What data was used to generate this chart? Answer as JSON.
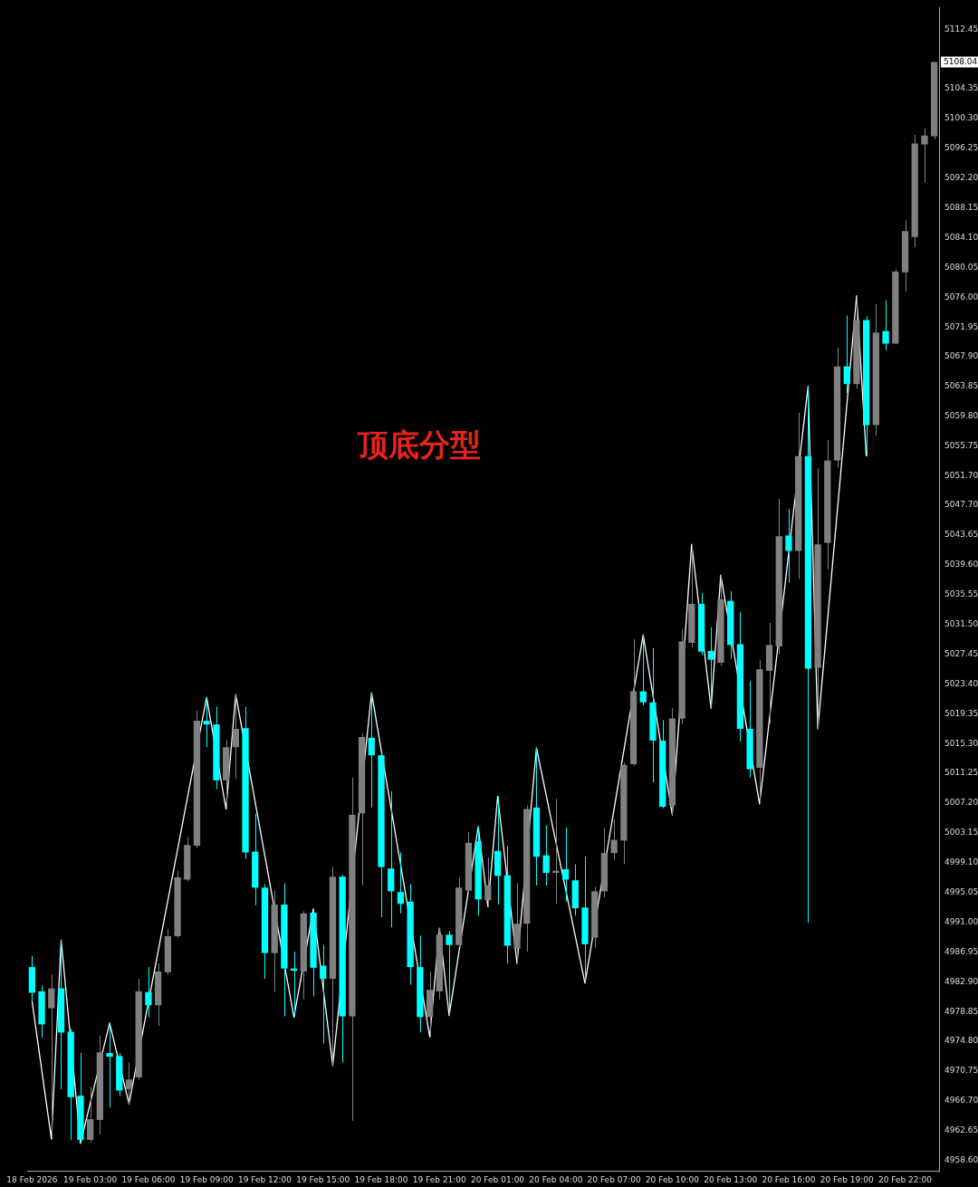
{
  "chart_data": {
    "type": "candlestick",
    "categories": [
      "18 Feb 2026",
      null,
      null,
      null,
      null,
      null,
      "19 Feb 03:00",
      null,
      null,
      null,
      null,
      null,
      "19 Feb 06:00",
      null,
      null,
      null,
      null,
      null,
      "19 Feb 09:00",
      null,
      null,
      null,
      null,
      null,
      "19 Feb 12:00",
      null,
      null,
      null,
      null,
      null,
      "19 Feb 15:00",
      null,
      null,
      null,
      null,
      null,
      "19 Feb 18:00",
      null,
      null,
      null,
      null,
      null,
      "19 Feb 21:00",
      null,
      null,
      null,
      null,
      null,
      "20 Feb 01:00",
      null,
      null,
      null,
      null,
      null,
      "20 Feb 04:00",
      null,
      null,
      null,
      null,
      null,
      "20 Feb 07:00",
      null,
      null,
      null,
      null,
      null,
      "20 Feb 10:00",
      null,
      null,
      null,
      null,
      null,
      "20 Feb 13:00",
      null,
      null,
      null,
      null,
      null,
      "20 Feb 16:00",
      null,
      null,
      null,
      null,
      null,
      "20 Feb 19:00",
      null,
      null,
      null,
      null,
      null,
      "20 Feb 22:00",
      null,
      null,
      null
    ],
    "ohlc": [
      [
        4984.9,
        4986.4,
        4980.3,
        4981.4
      ],
      [
        4981.6,
        4982.4,
        4975.3,
        4977.1
      ],
      [
        4979.3,
        4983.9,
        4961.5,
        4982.0
      ],
      [
        4982.0,
        4988.6,
        4968.3,
        4976.0
      ],
      [
        4976.1,
        4976.5,
        4961.4,
        4967.2
      ],
      [
        4967.4,
        4973.2,
        4960.9,
        4961.4
      ],
      [
        4961.4,
        4968.6,
        4961.0,
        4964.2
      ],
      [
        4964.1,
        4975.6,
        4962.1,
        4973.3
      ],
      [
        4973.2,
        4977.3,
        4965.8,
        4972.7
      ],
      [
        4972.8,
        4973.2,
        4967.4,
        4968.1
      ],
      [
        4968.3,
        4971.9,
        4966.3,
        4969.6
      ],
      [
        4969.9,
        4983.3,
        4969.6,
        4981.6
      ],
      [
        4981.5,
        4984.9,
        4978.1,
        4979.7
      ],
      [
        4979.7,
        4985.4,
        4976.9,
        4984.3
      ],
      [
        4984.2,
        4990.1,
        4983.9,
        4989.1
      ],
      [
        4989.1,
        4998.0,
        4988.9,
        4997.1
      ],
      [
        4996.8,
        5002.6,
        4996.6,
        5001.5
      ],
      [
        5001.4,
        5019.8,
        5001.1,
        5018.4
      ],
      [
        5018.4,
        5021.6,
        5014.8,
        5017.9
      ],
      [
        5017.9,
        5020.3,
        5009.1,
        5010.3
      ],
      [
        5010.3,
        5015.8,
        5006.4,
        5014.8
      ],
      [
        5014.8,
        5022.0,
        5010.5,
        5017.3
      ],
      [
        5017.4,
        5020.3,
        4999.6,
        5000.5
      ],
      [
        5000.6,
        5005.8,
        4993.3,
        4995.7
      ],
      [
        4995.7,
        4996.2,
        4983.3,
        4986.8
      ],
      [
        4986.8,
        4995.3,
        4981.5,
        4993.4
      ],
      [
        4993.4,
        4996.3,
        4978.2,
        4984.7
      ],
      [
        4984.7,
        4987.0,
        4978.1,
        4984.4
      ],
      [
        4984.3,
        4992.5,
        4980.5,
        4992.2
      ],
      [
        4992.3,
        4992.8,
        4980.9,
        4984.8
      ],
      [
        4985.1,
        4987.9,
        4974.5,
        4983.3
      ],
      [
        4983.3,
        4998.5,
        4971.5,
        4997.2
      ],
      [
        4997.2,
        4997.4,
        4971.9,
        4978.2
      ],
      [
        4978.2,
        5010.7,
        4964.0,
        5005.6
      ],
      [
        5005.8,
        5016.7,
        4996.0,
        5016.2
      ],
      [
        5016.1,
        5022.2,
        5006.6,
        5013.7
      ],
      [
        5013.7,
        5014.0,
        4991.7,
        4998.5
      ],
      [
        4998.3,
        5008.8,
        4990.3,
        4995.2
      ],
      [
        4995.1,
        5000.5,
        4992.2,
        4993.5
      ],
      [
        4993.8,
        4996.2,
        4982.5,
        4984.9
      ],
      [
        4984.9,
        4989.2,
        4976.0,
        4978.1
      ],
      [
        4978.1,
        4984.3,
        4975.4,
        4981.8
      ],
      [
        4981.6,
        4990.2,
        4980.5,
        4989.3
      ],
      [
        4989.3,
        4989.8,
        4978.3,
        4987.9
      ],
      [
        4987.9,
        4997.1,
        4987.6,
        4995.7
      ],
      [
        4995.3,
        5003.3,
        4995.1,
        5001.8
      ],
      [
        5002.0,
        5004.0,
        4991.9,
        4994.1
      ],
      [
        4994.0,
        4999.8,
        4993.1,
        4996.0
      ],
      [
        5000.7,
        5008.1,
        4993.4,
        4997.3
      ],
      [
        4997.4,
        5001.4,
        4985.4,
        4987.8
      ],
      [
        4987.4,
        4996.3,
        4985.4,
        4990.8
      ],
      [
        4990.8,
        5006.9,
        4987.0,
        5006.4
      ],
      [
        5006.6,
        5014.7,
        4996.0,
        4999.9
      ],
      [
        5000.1,
        5004.2,
        4996.0,
        4997.7
      ],
      [
        4997.7,
        5007.8,
        4993.5,
        4998.0
      ],
      [
        4998.2,
        5003.9,
        4993.8,
        4996.8
      ],
      [
        4996.7,
        4998.9,
        4991.9,
        4992.9
      ],
      [
        4993.0,
        4999.9,
        4982.7,
        4988.0
      ],
      [
        4988.9,
        4995.8,
        4987.6,
        4995.2
      ],
      [
        4995.2,
        5003.8,
        4994.4,
        5000.4
      ],
      [
        5000.4,
        5005.0,
        4999.5,
        5002.2
      ],
      [
        5002.1,
        5012.7,
        4998.9,
        5012.4
      ],
      [
        5012.5,
        5029.5,
        5012.3,
        5022.4
      ],
      [
        5022.4,
        5030.1,
        5020.5,
        5020.9
      ],
      [
        5020.9,
        5028.3,
        5010.0,
        5015.7
      ],
      [
        5015.7,
        5018.5,
        5006.5,
        5006.7
      ],
      [
        5006.9,
        5020.1,
        5005.6,
        5018.7
      ],
      [
        5018.7,
        5030.8,
        5018.0,
        5029.2
      ],
      [
        5029.0,
        5042.4,
        5028.4,
        5034.3
      ],
      [
        5034.3,
        5035.8,
        5027.4,
        5027.8
      ],
      [
        5027.9,
        5031.1,
        5020.1,
        5026.7
      ],
      [
        5026.3,
        5038.2,
        5025.9,
        5034.9
      ],
      [
        5034.7,
        5036.0,
        5026.8,
        5028.7
      ],
      [
        5028.8,
        5033.2,
        5015.6,
        5017.3
      ],
      [
        5017.3,
        5023.8,
        5010.7,
        5011.8
      ],
      [
        5012.0,
        5026.6,
        5007.1,
        5025.4
      ],
      [
        5025.2,
        5031.7,
        5018.0,
        5028.7
      ],
      [
        5028.5,
        5048.6,
        5027.4,
        5043.5
      ],
      [
        5043.6,
        5047.2,
        5037.2,
        5041.5
      ],
      [
        5041.5,
        5060.3,
        5037.7,
        5054.4
      ],
      [
        5054.4,
        5063.9,
        4990.9,
        5025.5
      ],
      [
        5025.6,
        5052.7,
        5017.3,
        5042.4
      ],
      [
        5042.6,
        5056.6,
        5039.0,
        5053.8
      ],
      [
        5053.8,
        5069.2,
        5052.9,
        5066.6
      ],
      [
        5066.6,
        5073.5,
        5063.0,
        5064.2
      ],
      [
        5064.2,
        5076.2,
        5063.6,
        5072.9
      ],
      [
        5072.9,
        5073.4,
        5054.4,
        5058.6
      ],
      [
        5058.6,
        5075.1,
        5057.2,
        5071.2
      ],
      [
        5071.4,
        5075.6,
        5068.8,
        5069.7
      ],
      [
        5069.7,
        5079.8,
        5069.6,
        5079.5
      ],
      [
        5079.4,
        5086.5,
        5076.8,
        5085.0
      ],
      [
        5084.2,
        5098.1,
        5082.8,
        5096.9
      ],
      [
        5096.8,
        5099.0,
        5091.6,
        5098.0
      ],
      [
        5097.9,
        5108.0,
        5097.5,
        5108.0
      ]
    ],
    "colors": [
      "#00ffff",
      "#00ffff",
      "#808080",
      "#00ffff",
      "#00ffff",
      "#00ffff",
      "#808080",
      "#808080",
      "#00ffff",
      "#00ffff",
      "#808080",
      "#808080",
      "#00ffff",
      "#808080",
      "#808080",
      "#808080",
      "#808080",
      "#808080",
      "#00ffff",
      "#00ffff",
      "#808080",
      "#808080",
      "#00ffff",
      "#00ffff",
      "#00ffff",
      "#808080",
      "#00ffff",
      "#00ffff",
      "#808080",
      "#00ffff",
      "#00ffff",
      "#808080",
      "#00ffff",
      "#808080",
      "#808080",
      "#00ffff",
      "#00ffff",
      "#00ffff",
      "#00ffff",
      "#00ffff",
      "#00ffff",
      "#808080",
      "#808080",
      "#00ffff",
      "#808080",
      "#808080",
      "#00ffff",
      "#808080",
      "#00ffff",
      "#00ffff",
      "#808080",
      "#808080",
      "#00ffff",
      "#00ffff",
      "#808080",
      "#00ffff",
      "#00ffff",
      "#00ffff",
      "#808080",
      "#808080",
      "#808080",
      "#808080",
      "#808080",
      "#00ffff",
      "#00ffff",
      "#00ffff",
      "#808080",
      "#808080",
      "#808080",
      "#00ffff",
      "#00ffff",
      "#808080",
      "#00ffff",
      "#00ffff",
      "#00ffff",
      "#808080",
      "#808080",
      "#808080",
      "#00ffff",
      "#808080",
      "#00ffff",
      "#808080",
      "#808080",
      "#808080",
      "#00ffff",
      "#808080",
      "#00ffff",
      "#808080",
      "#00ffff",
      "#808080",
      "#808080",
      "#808080",
      "#808080",
      "#808080"
    ],
    "series": [
      {
        "type": "line",
        "color": "#ffffff",
        "values": [
          4980.3,
          null,
          4961.5,
          4988.6,
          null,
          4960.9,
          null,
          null,
          4977.3,
          null,
          4966.3,
          null,
          null,
          null,
          null,
          null,
          null,
          null,
          5021.6,
          null,
          5006.4,
          5022.0,
          null,
          null,
          null,
          null,
          null,
          4978.1,
          null,
          4992.8,
          null,
          4971.5,
          null,
          null,
          null,
          5022.2,
          null,
          null,
          null,
          null,
          null,
          4975.4,
          4990.2,
          4978.3,
          null,
          null,
          5004.0,
          4993.1,
          5008.1,
          null,
          4985.4,
          null,
          5014.7,
          null,
          null,
          null,
          null,
          4982.7,
          null,
          null,
          null,
          null,
          null,
          5030.1,
          null,
          null,
          5005.6,
          null,
          5042.4,
          null,
          5020.1,
          5038.2,
          null,
          null,
          null,
          5007.1,
          null,
          null,
          null,
          null,
          5063.9,
          5017.3,
          null,
          null,
          null,
          5076.2,
          5054.4,
          null,
          null,
          null,
          null,
          null,
          null,
          null
        ]
      }
    ],
    "ylim": [
      4957.2,
      5115.4
    ],
    "yticks": [
      5112.45,
      5104.35,
      {
        "value": 5100.3,
        "label": "5100.30"
      },
      5096.25,
      {
        "value": 5092.2,
        "label": "5092.20"
      },
      5088.15,
      {
        "value": 5084.1,
        "label": "5084.10"
      },
      5080.05,
      {
        "value": 5076,
        "label": "5076.00"
      },
      5071.95,
      {
        "value": 5067.9,
        "label": "5067.90"
      },
      5063.85,
      {
        "value": 5059.8,
        "label": "5059.80"
      },
      5055.75,
      {
        "value": 5051.7,
        "label": "5051.70"
      },
      {
        "value": 5047.7,
        "label": "5047.70"
      },
      5043.65,
      {
        "value": 5039.6,
        "label": "5039.60"
      },
      5035.55,
      {
        "value": 5031.5,
        "label": "5031.50"
      },
      5027.45,
      {
        "value": 5023.4,
        "label": "5023.40"
      },
      5019.35,
      {
        "value": 5015.3,
        "label": "5015.30"
      },
      5011.25,
      {
        "value": 5007.2,
        "label": "5007.20"
      },
      5003.15,
      {
        "value": 4999.1,
        "label": "4999.10"
      },
      4995.05,
      {
        "value": 4991,
        "label": "4991.00"
      },
      4986.95,
      {
        "value": 4982.9,
        "label": "4982.90"
      },
      4978.85,
      {
        "value": 4974.8,
        "label": "4974.80"
      },
      4970.75,
      {
        "value": 4966.7,
        "label": "4966.70"
      },
      4962.65,
      {
        "value": 4958.6,
        "label": "4958.60"
      }
    ],
    "annotations": [
      "顶底分型",
      "5108.04"
    ],
    "grid": false,
    "legend": false
  }
}
